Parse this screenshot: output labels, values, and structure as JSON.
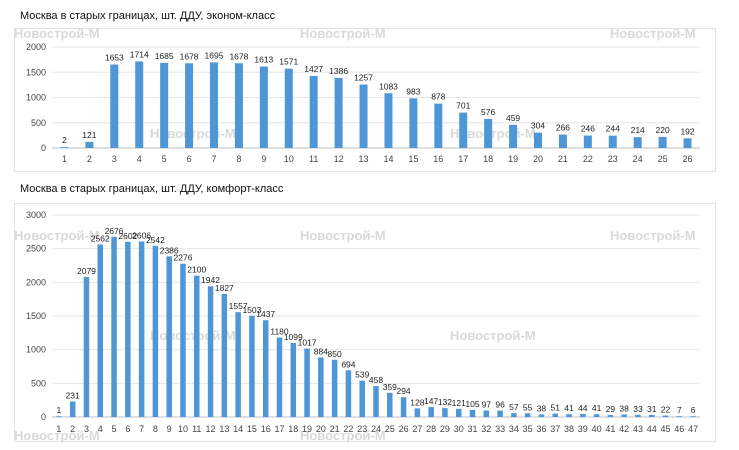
{
  "watermark": "Новострой-М",
  "colors": {
    "bar": "#4e96d6",
    "grid": "#e6e6e6",
    "axis": "#bfbfbf"
  },
  "chart_data": [
    {
      "type": "bar",
      "title": "Москва в старых границах, шт. ДДУ, эконом-класс",
      "categories": [
        "1",
        "2",
        "3",
        "4",
        "5",
        "6",
        "7",
        "8",
        "9",
        "10",
        "11",
        "12",
        "13",
        "14",
        "15",
        "16",
        "17",
        "18",
        "19",
        "20",
        "21",
        "22",
        "23",
        "24",
        "25",
        "26"
      ],
      "values": [
        2,
        121,
        1653,
        1714,
        1685,
        1678,
        1695,
        1678,
        1613,
        1571,
        1427,
        1386,
        1257,
        1083,
        983,
        878,
        701,
        576,
        459,
        304,
        266,
        246,
        244,
        214,
        220,
        192
      ],
      "yticks": [
        0,
        500,
        1000,
        1500,
        2000
      ],
      "ylim": [
        0,
        2000
      ],
      "grid": true
    },
    {
      "type": "bar",
      "title": "Москва в старых границах, шт. ДДУ, комфорт-класс",
      "categories": [
        "1",
        "2",
        "3",
        "4",
        "5",
        "6",
        "7",
        "8",
        "9",
        "10",
        "11",
        "12",
        "13",
        "14",
        "15",
        "16",
        "17",
        "18",
        "19",
        "20",
        "21",
        "22",
        "23",
        "24",
        "25",
        "26",
        "27",
        "28",
        "29",
        "30",
        "31",
        "32",
        "33",
        "34",
        "35",
        "36",
        "37",
        "38",
        "39",
        "40",
        "41",
        "42",
        "43",
        "44",
        "45",
        "46",
        "47"
      ],
      "values": [
        1,
        231,
        2079,
        2562,
        2676,
        2602,
        2606,
        2542,
        2386,
        2276,
        2100,
        1942,
        1827,
        1557,
        1503,
        1437,
        1180,
        1099,
        1017,
        884,
        850,
        694,
        539,
        458,
        359,
        294,
        128,
        147,
        132,
        121,
        105,
        97,
        96,
        57,
        55,
        38,
        51,
        41,
        44,
        41,
        29,
        38,
        33,
        31,
        22,
        7,
        6
      ],
      "yticks": [
        0,
        500,
        1000,
        1500,
        2000,
        2500,
        3000
      ],
      "ylim": [
        0,
        3000
      ],
      "grid": true
    }
  ]
}
